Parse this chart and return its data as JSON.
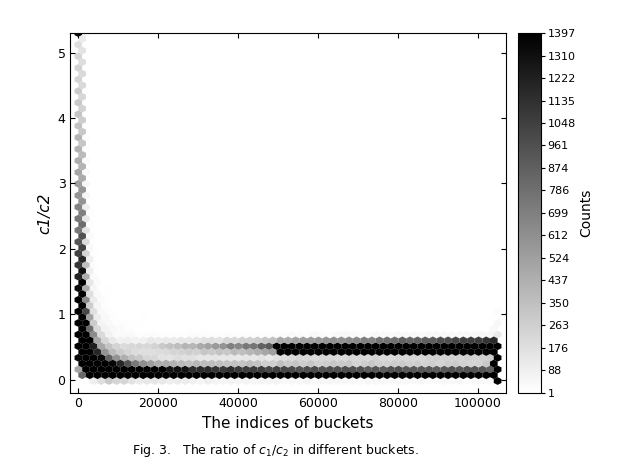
{
  "xlabel": "The indices of buckets",
  "ylabel": "c1/c2",
  "caption": "Fig. 3.   The ratio of $c_1/c_2$ in different buckets.",
  "xlim": [
    -2000,
    107000
  ],
  "ylim": [
    -0.2,
    5.3
  ],
  "xticks": [
    0,
    20000,
    40000,
    60000,
    80000,
    100000
  ],
  "yticks": [
    0,
    1,
    2,
    3,
    4,
    5
  ],
  "colorbar_label": "Counts",
  "colorbar_ticks": [
    1,
    88,
    176,
    263,
    350,
    437,
    524,
    612,
    699,
    786,
    874,
    961,
    1048,
    1135,
    1222,
    1310,
    1397
  ],
  "vmin": 1,
  "vmax": 1397,
  "gridsize": 55,
  "seed": 123,
  "background_color": "#ffffff",
  "cmap": "gray_r"
}
